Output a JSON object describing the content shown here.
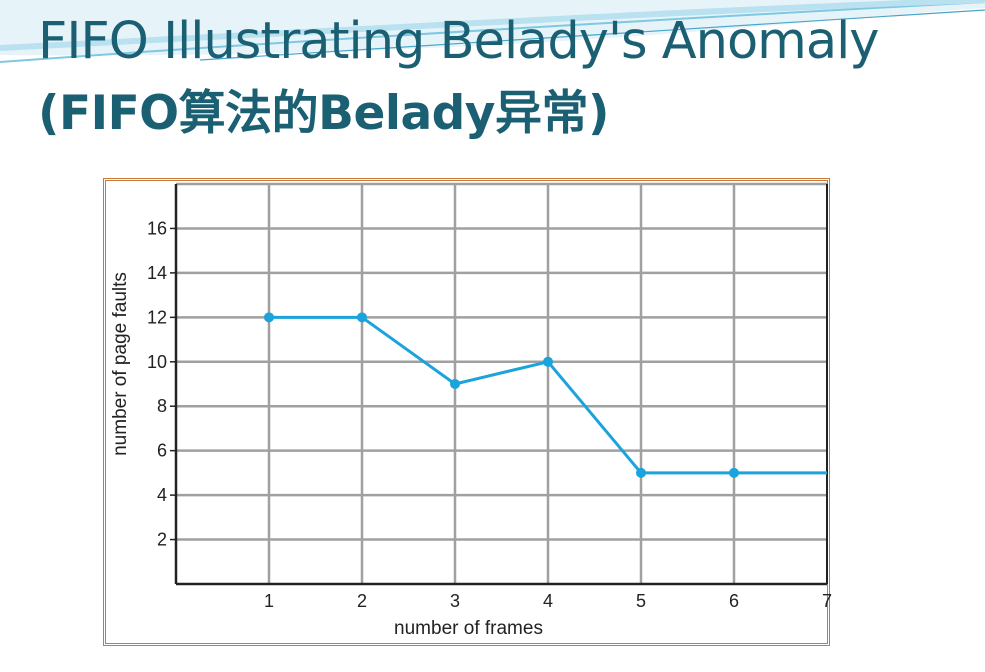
{
  "slide": {
    "title_line1": "FIFO Illustrating Belady's Anomaly",
    "title_line2": "(FIFO算法的Belady异常)"
  },
  "colors": {
    "title": "#1b5f73",
    "frame_border": "#c87a3a",
    "series_line": "#1aa3dc",
    "grid": "#a0a0a0",
    "swoosh": "#7fc8e2"
  },
  "chart_data": {
    "type": "line",
    "title": "",
    "xlabel": "number of frames",
    "ylabel": "number of page faults",
    "x": [
      1,
      2,
      3,
      4,
      5,
      6,
      7
    ],
    "x_tick_labels": [
      "1",
      "2",
      "3",
      "4",
      "5",
      "6",
      "7"
    ],
    "y_tick_labels": [
      "2",
      "4",
      "6",
      "8",
      "10",
      "12",
      "14",
      "16"
    ],
    "series": [
      {
        "name": "",
        "x": [
          1,
          2,
          3,
          4,
          5,
          6,
          7
        ],
        "values": [
          12,
          12,
          9,
          10,
          5,
          5,
          5
        ],
        "marker_x": [
          1,
          2,
          3,
          4,
          5,
          6
        ]
      }
    ],
    "xlim": [
      0,
      7
    ],
    "ylim": [
      0,
      18
    ],
    "grid": true,
    "legend": "none"
  }
}
